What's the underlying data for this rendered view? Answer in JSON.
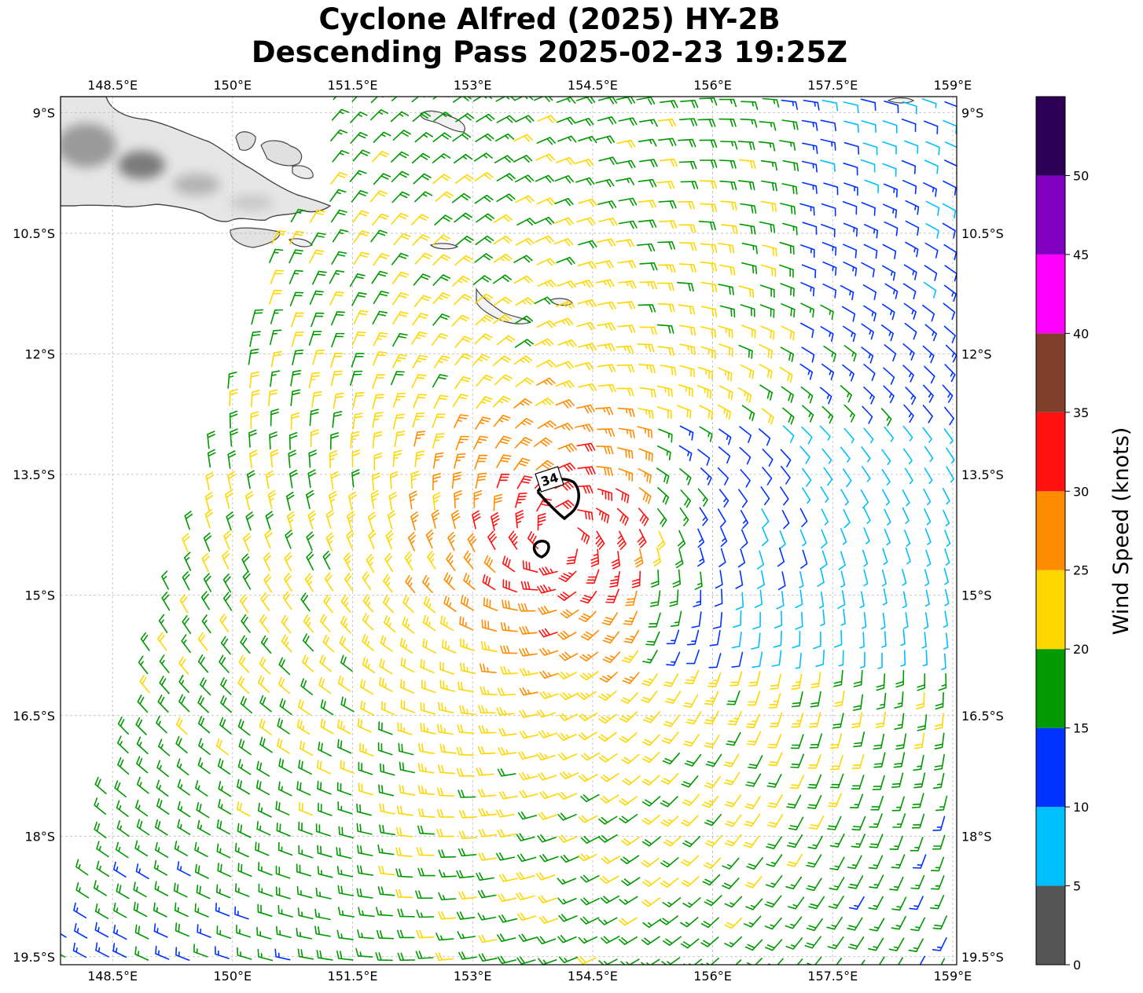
{
  "title": {
    "line1": "Cyclone Alfred (2025) HY-2B",
    "line2": "Descending Pass 2025-02-23 19:25Z"
  },
  "map": {
    "lon_ticks": [
      "148.5°E",
      "150°E",
      "151.5°E",
      "153°E",
      "154.5°E",
      "156°E",
      "157.5°E",
      "159°E"
    ],
    "lat_ticks": [
      "9°S",
      "10.5°S",
      "12°S",
      "13.5°S",
      "15°S",
      "16.5°S",
      "18°S",
      "19.5°S"
    ],
    "lon_range": [
      147.85,
      159.05
    ],
    "lat_range": [
      -19.6,
      -8.8
    ],
    "gridlines": true,
    "storm_center": {
      "lon": 154.1,
      "lat": -14.3
    },
    "contour_label": "34"
  },
  "colorbar": {
    "label": "Wind Speed (knots)",
    "bins": [
      {
        "min": 0,
        "max": 5,
        "color": "#555555"
      },
      {
        "min": 5,
        "max": 10,
        "color": "#00bfff"
      },
      {
        "min": 10,
        "max": 15,
        "color": "#0033ff"
      },
      {
        "min": 15,
        "max": 20,
        "color": "#009900"
      },
      {
        "min": 20,
        "max": 25,
        "color": "#ffd700"
      },
      {
        "min": 25,
        "max": 30,
        "color": "#ff8c00"
      },
      {
        "min": 30,
        "max": 35,
        "color": "#ff1111"
      },
      {
        "min": 35,
        "max": 40,
        "color": "#7f3f2a"
      },
      {
        "min": 40,
        "max": 45,
        "color": "#ff00ff"
      },
      {
        "min": 45,
        "max": 50,
        "color": "#8000c0"
      },
      {
        "min": 50,
        "max": 55,
        "color": "#2d0055"
      }
    ],
    "tick_labels": [
      "0",
      "5",
      "10",
      "15",
      "20",
      "25",
      "30",
      "35",
      "40",
      "45",
      "50"
    ]
  }
}
